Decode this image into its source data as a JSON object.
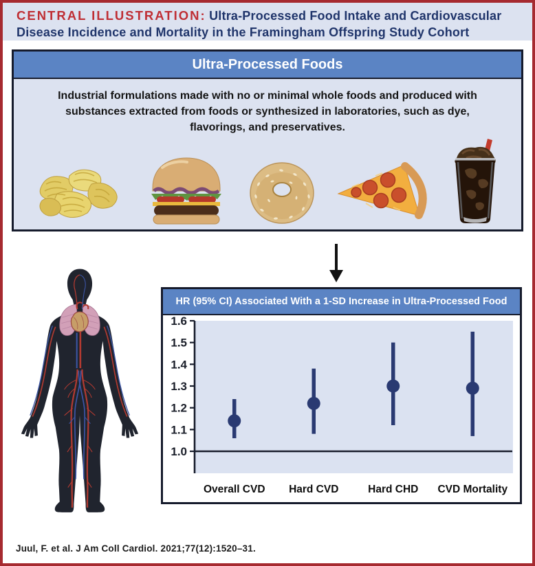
{
  "page": {
    "title_label": "CENTRAL ILLUSTRATION:",
    "title_line1": "Ultra-Processed Food Intake and Cardiovascular",
    "title_line2": "Disease Incidence and Mortality in the Framingham Offspring Study Cohort",
    "citation": "Juul, F. et al. J Am Coll Cardiol. 2021;77(12):1520–31."
  },
  "upf_box": {
    "header": "Ultra-Processed Foods",
    "description": "Industrial formulations made with no or minimal whole foods and produced with substances extracted from foods or synthesized in laboratories, such as dye, flavorings, and preservatives.",
    "food_images": [
      "potato-chips",
      "cheeseburger",
      "bagel",
      "pepperoni-pizza-slice",
      "cola-glass-with-straw"
    ]
  },
  "illustration": {
    "body_figure": "human-silhouette-with-cardiovascular-system"
  },
  "chart_data": {
    "type": "scatter",
    "subtype": "point-estimates-with-95ci-error-bars",
    "title": "HR (95% CI) Associated With a 1-SD Increase in Ultra-Processed Food",
    "categories": [
      "Overall CVD",
      "Hard CVD",
      "Hard CHD",
      "CVD Mortality"
    ],
    "series": [
      {
        "name": "HR (95% CI)",
        "values": [
          1.14,
          1.22,
          1.3,
          1.29
        ],
        "ci_low": [
          1.06,
          1.08,
          1.12,
          1.07
        ],
        "ci_high": [
          1.24,
          1.38,
          1.5,
          1.55
        ]
      }
    ],
    "yticks": [
      "1.0",
      "1.1",
      "1.2",
      "1.3",
      "1.4",
      "1.5",
      "1.6"
    ],
    "ylim": [
      0.9,
      1.6
    ],
    "reference_line": 1.0,
    "grid": false,
    "legend": "none",
    "point_color": "#2a3a72",
    "axis_color": "#171c2b",
    "plot_background": "#dbe2f1"
  },
  "colors": {
    "outer_border": "#a62a30",
    "band_background": "#dce2f0",
    "title_red": "#bf2e34",
    "title_navy": "#20356b",
    "panel_header_blue": "#5b84c4",
    "panel_border": "#161b2c"
  }
}
